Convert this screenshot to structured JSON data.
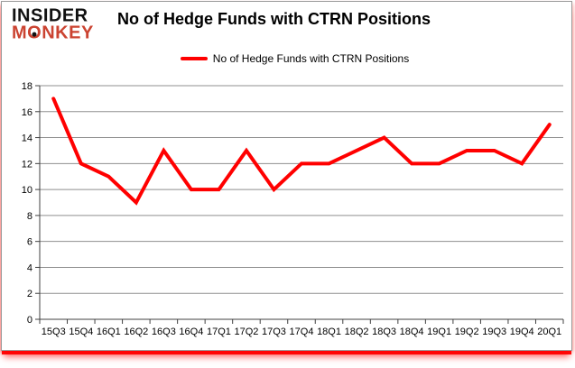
{
  "logo": {
    "line1": "INSIDER",
    "line2_m": "M",
    "line2_o": "O",
    "line2_rest": "NKEY"
  },
  "title": "No of Hedge Funds with CTRN Positions",
  "legend": {
    "label": "No of Hedge Funds with CTRN Positions"
  },
  "colors": {
    "line": "#ff0000",
    "monkey_red": "#cb4331",
    "grid": "#8f8f8f",
    "axis": "#404040",
    "label": "#000000"
  },
  "chart_data": {
    "type": "line",
    "title": "No of Hedge Funds with CTRN Positions",
    "categories": [
      "15Q3",
      "15Q4",
      "16Q1",
      "16Q2",
      "16Q3",
      "16Q4",
      "17Q1",
      "17Q2",
      "17Q3",
      "17Q4",
      "18Q1",
      "18Q2",
      "18Q3",
      "18Q4",
      "19Q1",
      "19Q2",
      "19Q3",
      "19Q4",
      "20Q1"
    ],
    "series": [
      {
        "name": "No of Hedge Funds with CTRN Positions",
        "values": [
          17,
          12,
          11,
          9,
          13,
          10,
          10,
          13,
          10,
          12,
          12,
          13,
          14,
          12,
          12,
          13,
          13,
          12,
          15
        ]
      }
    ],
    "xlabel": "",
    "ylabel": "",
    "ylim": [
      0,
      18
    ],
    "ytick_step": 2,
    "grid": true,
    "legend_position": "top-center"
  }
}
